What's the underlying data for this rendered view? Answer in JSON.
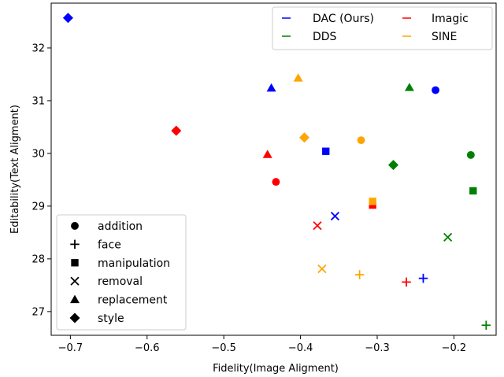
{
  "chart_data": {
    "type": "scatter",
    "xlabel": "Fidelity(Image Aligment)",
    "ylabel": "Editability(Text Aligment)",
    "xlim": [
      -0.725,
      -0.145
    ],
    "ylim": [
      26.55,
      32.85
    ],
    "xticks": [
      -0.7,
      -0.6,
      -0.5,
      -0.4,
      -0.3,
      -0.2
    ],
    "yticks": [
      27,
      28,
      29,
      30,
      31,
      32
    ],
    "legend_methods": {
      "placement": "top-right",
      "entries": [
        {
          "name": "DAC (Ours)",
          "color": "#0000ff"
        },
        {
          "name": "DDS",
          "color": "#008000"
        },
        {
          "name": "Imagic",
          "color": "#ff0000"
        },
        {
          "name": "SINE",
          "color": "#ffa500"
        }
      ]
    },
    "legend_tasks": {
      "placement": "lower-left",
      "entries": [
        {
          "name": "addition",
          "marker": "circle"
        },
        {
          "name": "face",
          "marker": "plus"
        },
        {
          "name": "manipulation",
          "marker": "square"
        },
        {
          "name": "removal",
          "marker": "x"
        },
        {
          "name": "replacement",
          "marker": "triangle"
        },
        {
          "name": "style",
          "marker": "diamond"
        }
      ]
    },
    "series": [
      {
        "method": "DAC (Ours)",
        "color": "#0000ff",
        "points": [
          {
            "task": "addition",
            "x": -0.224,
            "y": 31.2
          },
          {
            "task": "face",
            "x": -0.24,
            "y": 27.63
          },
          {
            "task": "manipulation",
            "x": -0.367,
            "y": 30.04
          },
          {
            "task": "removal",
            "x": -0.355,
            "y": 28.81
          },
          {
            "task": "replacement",
            "x": -0.438,
            "y": 31.24
          },
          {
            "task": "style",
            "x": -0.703,
            "y": 32.57
          }
        ]
      },
      {
        "method": "DDS",
        "color": "#008000",
        "points": [
          {
            "task": "addition",
            "x": -0.178,
            "y": 29.97
          },
          {
            "task": "face",
            "x": -0.158,
            "y": 26.74
          },
          {
            "task": "manipulation",
            "x": -0.175,
            "y": 29.29
          },
          {
            "task": "removal",
            "x": -0.208,
            "y": 28.41
          },
          {
            "task": "replacement",
            "x": -0.258,
            "y": 31.25
          },
          {
            "task": "style",
            "x": -0.279,
            "y": 29.78
          }
        ]
      },
      {
        "method": "Imagic",
        "color": "#ff0000",
        "points": [
          {
            "task": "addition",
            "x": -0.432,
            "y": 29.46
          },
          {
            "task": "face",
            "x": -0.262,
            "y": 27.56
          },
          {
            "task": "manipulation",
            "x": -0.306,
            "y": 29.02
          },
          {
            "task": "removal",
            "x": -0.378,
            "y": 28.63
          },
          {
            "task": "replacement",
            "x": -0.443,
            "y": 29.98
          },
          {
            "task": "style",
            "x": -0.562,
            "y": 30.43
          }
        ]
      },
      {
        "method": "SINE",
        "color": "#ffa500",
        "points": [
          {
            "task": "addition",
            "x": -0.321,
            "y": 30.25
          },
          {
            "task": "face",
            "x": -0.323,
            "y": 27.7
          },
          {
            "task": "manipulation",
            "x": -0.306,
            "y": 29.09
          },
          {
            "task": "removal",
            "x": -0.372,
            "y": 27.81
          },
          {
            "task": "replacement",
            "x": -0.403,
            "y": 31.43
          },
          {
            "task": "style",
            "x": -0.395,
            "y": 30.3
          }
        ]
      }
    ]
  }
}
